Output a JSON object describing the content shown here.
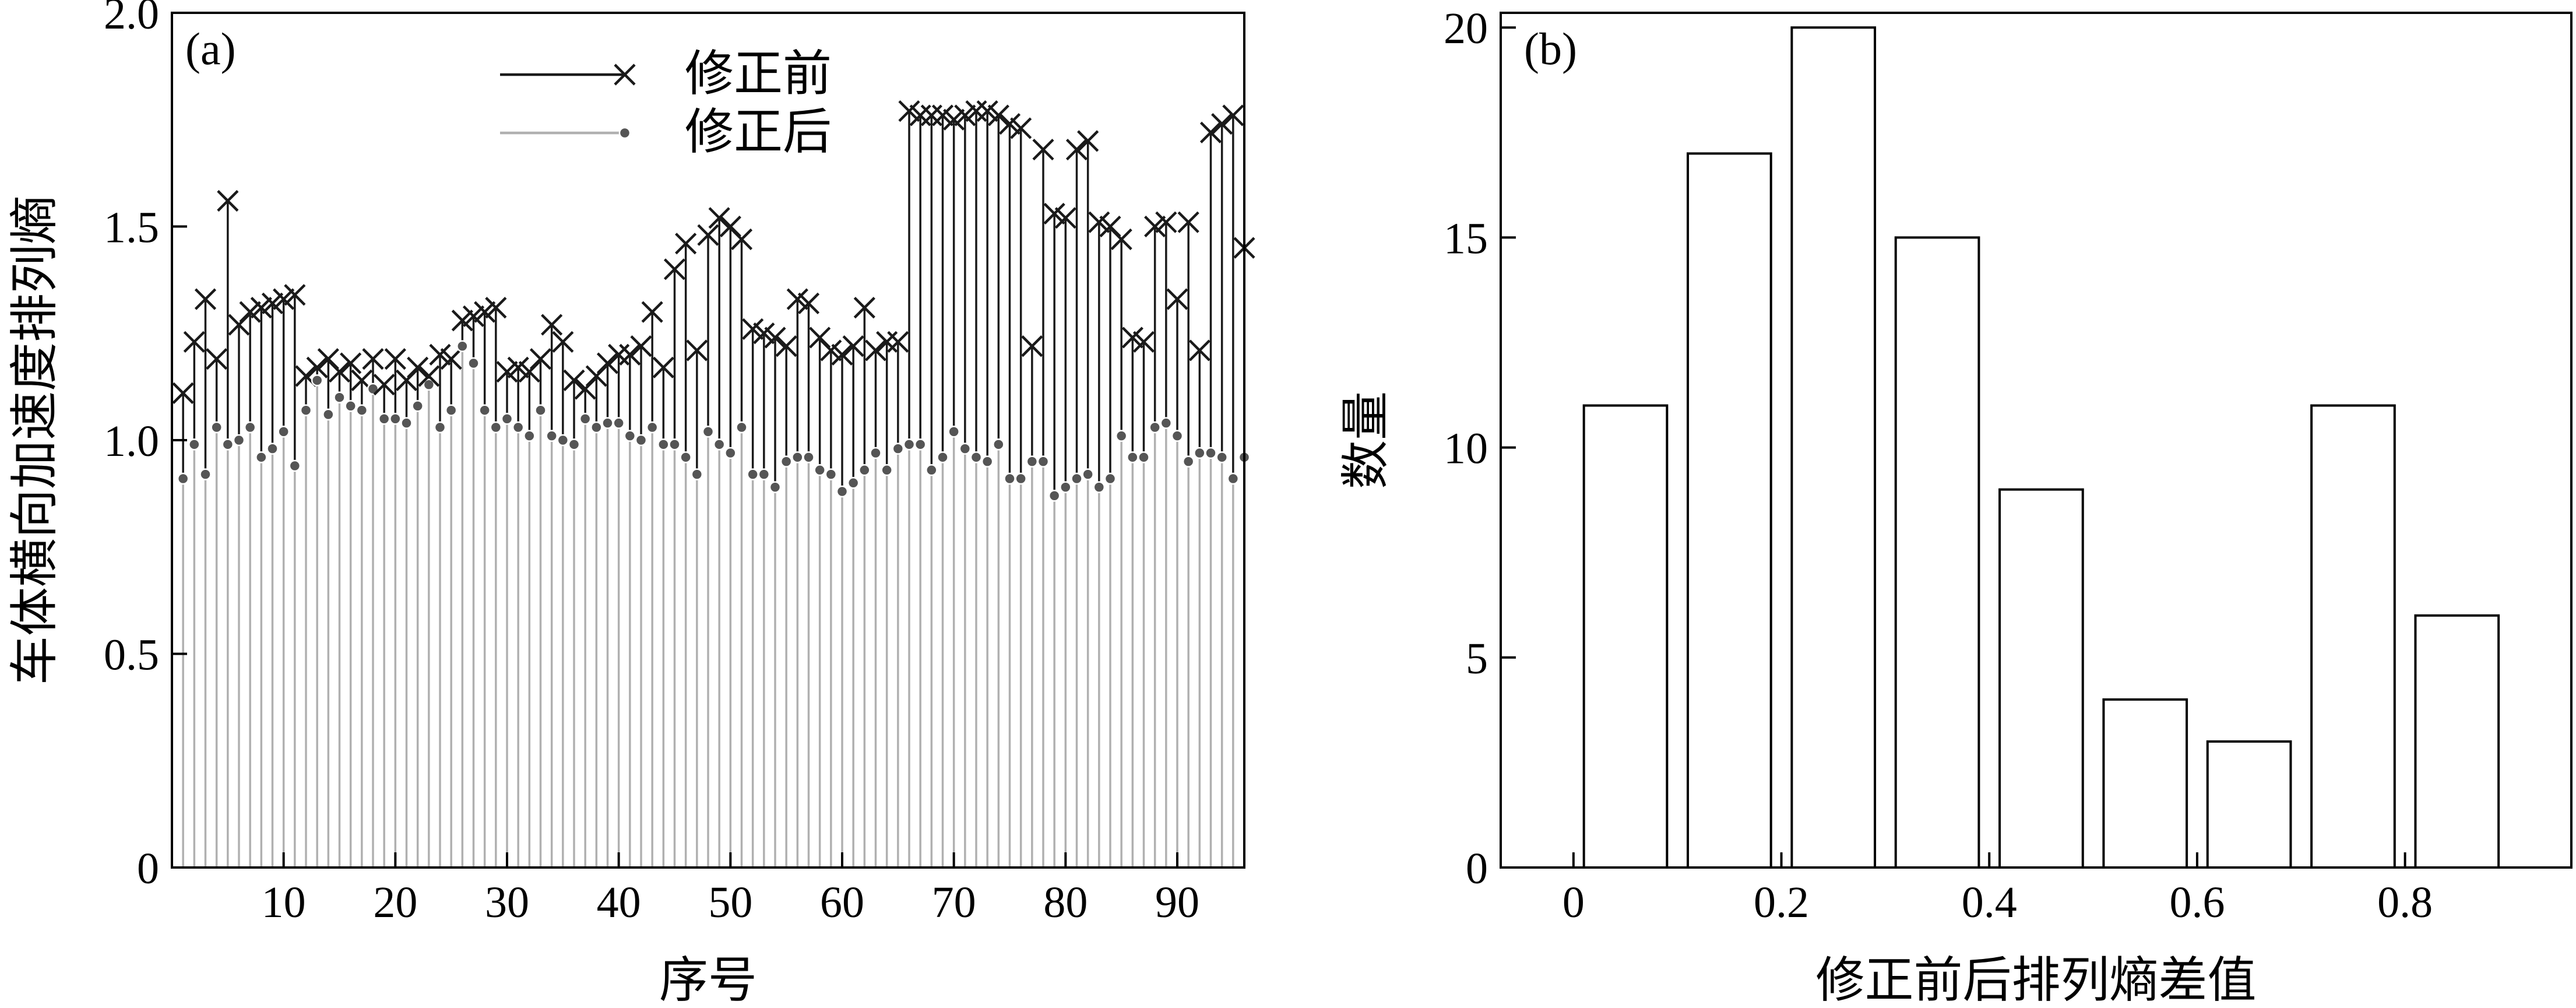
{
  "chart_data": [
    {
      "type": "stem",
      "panel_label": "(a)",
      "xlabel": "序号",
      "ylabel": "车体横向加速度排列熵",
      "xlim": [
        0,
        96
      ],
      "ylim": [
        0,
        2.0
      ],
      "xticks": [
        10,
        20,
        30,
        40,
        50,
        60,
        70,
        80,
        90
      ],
      "xtick_labels": [
        "10",
        "20",
        "30",
        "40",
        "50",
        "60",
        "70",
        "80",
        "90"
      ],
      "yticks": [
        0,
        0.5,
        1.0,
        1.5,
        2.0
      ],
      "ytick_labels": [
        "0",
        "0.5",
        "1.0",
        "1.5",
        "2.0"
      ],
      "legend_position": "top-center",
      "colors": {
        "before": "#1a1a1a",
        "after_stem": "#b0b0b0",
        "after_marker": "#555555"
      },
      "x": [
        1,
        2,
        3,
        4,
        5,
        6,
        7,
        8,
        9,
        10,
        11,
        12,
        13,
        14,
        15,
        16,
        17,
        18,
        19,
        20,
        21,
        22,
        23,
        24,
        25,
        26,
        27,
        28,
        29,
        30,
        31,
        32,
        33,
        34,
        35,
        36,
        37,
        38,
        39,
        40,
        41,
        42,
        43,
        44,
        45,
        46,
        47,
        48,
        49,
        50,
        51,
        52,
        53,
        54,
        55,
        56,
        57,
        58,
        59,
        60,
        61,
        62,
        63,
        64,
        65,
        66,
        67,
        68,
        69,
        70,
        71,
        72,
        73,
        74,
        75,
        76,
        77,
        78,
        79,
        80,
        81,
        82,
        83,
        84,
        85,
        86,
        87,
        88,
        89,
        90,
        91,
        92,
        93,
        94,
        95,
        96
      ],
      "series": [
        {
          "name": "修正前",
          "marker": "x",
          "values": [
            1.11,
            1.23,
            1.33,
            1.19,
            1.56,
            1.27,
            1.3,
            1.31,
            1.32,
            1.33,
            1.34,
            1.15,
            1.17,
            1.19,
            1.16,
            1.18,
            1.14,
            1.19,
            1.13,
            1.19,
            1.14,
            1.17,
            1.15,
            1.2,
            1.19,
            1.28,
            1.29,
            1.3,
            1.31,
            1.16,
            1.17,
            1.16,
            1.19,
            1.27,
            1.23,
            1.14,
            1.12,
            1.15,
            1.18,
            1.2,
            1.2,
            1.22,
            1.3,
            1.17,
            1.4,
            1.46,
            1.21,
            1.48,
            1.52,
            1.5,
            1.47,
            1.26,
            1.25,
            1.24,
            1.22,
            1.33,
            1.32,
            1.24,
            1.21,
            1.2,
            1.22,
            1.31,
            1.21,
            1.23,
            1.23,
            1.77,
            1.76,
            1.76,
            1.76,
            1.75,
            1.76,
            1.77,
            1.77,
            1.76,
            1.74,
            1.73,
            1.22,
            1.68,
            1.53,
            1.52,
            1.68,
            1.7,
            1.51,
            1.5,
            1.47,
            1.24,
            1.23,
            1.5,
            1.51,
            1.33,
            1.51,
            1.21,
            1.72,
            1.74,
            1.76,
            1.45
          ]
        },
        {
          "name": "修正后",
          "marker": "dot",
          "values": [
            0.91,
            0.99,
            0.92,
            1.03,
            0.99,
            1.0,
            1.03,
            0.96,
            0.98,
            1.02,
            0.94,
            1.07,
            1.14,
            1.06,
            1.1,
            1.08,
            1.07,
            1.12,
            1.05,
            1.05,
            1.04,
            1.08,
            1.13,
            1.03,
            1.07,
            1.22,
            1.18,
            1.07,
            1.03,
            1.05,
            1.03,
            1.01,
            1.07,
            1.01,
            1.0,
            0.99,
            1.05,
            1.03,
            1.04,
            1.04,
            1.01,
            1.0,
            1.03,
            0.99,
            0.99,
            0.96,
            0.92,
            1.02,
            0.99,
            0.97,
            1.03,
            0.92,
            0.92,
            0.89,
            0.95,
            0.96,
            0.96,
            0.93,
            0.92,
            0.88,
            0.9,
            0.93,
            0.97,
            0.93,
            0.98,
            0.99,
            0.99,
            0.93,
            0.96,
            1.02,
            0.98,
            0.96,
            0.95,
            0.99,
            0.91,
            0.91,
            0.95,
            0.95,
            0.87,
            0.89,
            0.91,
            0.92,
            0.89,
            0.91,
            1.01,
            0.96,
            0.96,
            1.03,
            1.04,
            1.01,
            0.95,
            0.97,
            0.97,
            0.96,
            0.91,
            0.96
          ]
        }
      ]
    },
    {
      "type": "bar",
      "panel_label": "(b)",
      "xlabel": "修正前后排列熵差值",
      "ylabel": "数量",
      "bin_width": 0.08,
      "bin_centers": [
        0.05,
        0.15,
        0.25,
        0.35,
        0.45,
        0.55,
        0.65,
        0.75,
        0.85
      ],
      "values": [
        11,
        17,
        20,
        15,
        9,
        4,
        3,
        11,
        6
      ],
      "xlim": [
        -0.07,
        0.96
      ],
      "ylim": [
        0,
        20.35
      ],
      "xticks": [
        0,
        0.2,
        0.4,
        0.6,
        0.8
      ],
      "xtick_labels": [
        "0",
        "0.2",
        "0.4",
        "0.6",
        "0.8"
      ],
      "yticks": [
        0,
        5,
        10,
        15,
        20
      ],
      "ytick_labels": [
        "0",
        "5",
        "10",
        "15",
        "20"
      ]
    }
  ]
}
